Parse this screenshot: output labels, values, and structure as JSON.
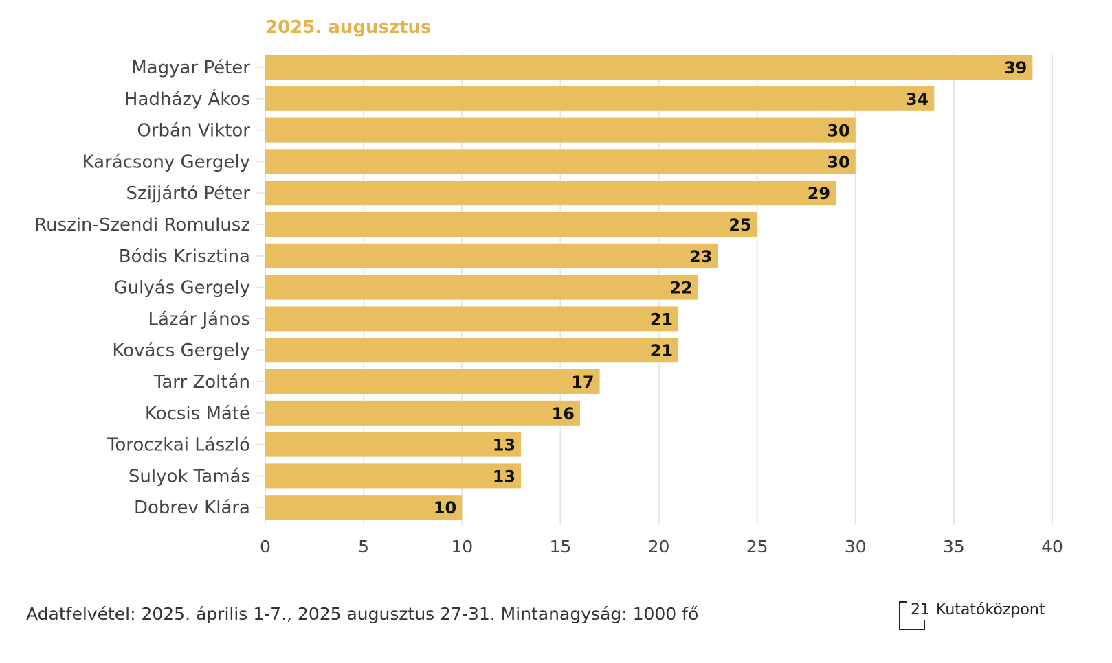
{
  "chart_data": {
    "type": "bar",
    "orientation": "horizontal",
    "title": "2025. augusztus",
    "categories": [
      "Magyar Péter",
      "Hadházy Ákos",
      "Orbán Viktor",
      "Karácsony Gergely",
      "Szijjártó Péter",
      "Ruszin-Szendi Romulusz",
      "Bódis Krisztina",
      "Gulyás Gergely",
      "Lázár János",
      "Kovács Gergely",
      "Tarr Zoltán",
      "Kocsis Máté",
      "Toroczkai László",
      "Sulyok Tamás",
      "Dobrev Klára"
    ],
    "values": [
      39,
      34,
      30,
      30,
      29,
      25,
      23,
      22,
      21,
      21,
      17,
      16,
      13,
      13,
      10
    ],
    "xlim": [
      0,
      40
    ],
    "xticks": [
      0,
      5,
      10,
      15,
      20,
      25,
      30,
      35,
      40
    ],
    "grid": true,
    "colors": {
      "bar": "#E8BE5E",
      "title": "#E4B44A",
      "grid": "#E6E6E6"
    }
  },
  "footer": {
    "note": "Adatfelvétel: 2025. április 1-7., 2025 augusztus 27-31. Mintanagyság: 1000 fő"
  },
  "logo": {
    "number": "21",
    "name": "Kutatóközpont"
  }
}
